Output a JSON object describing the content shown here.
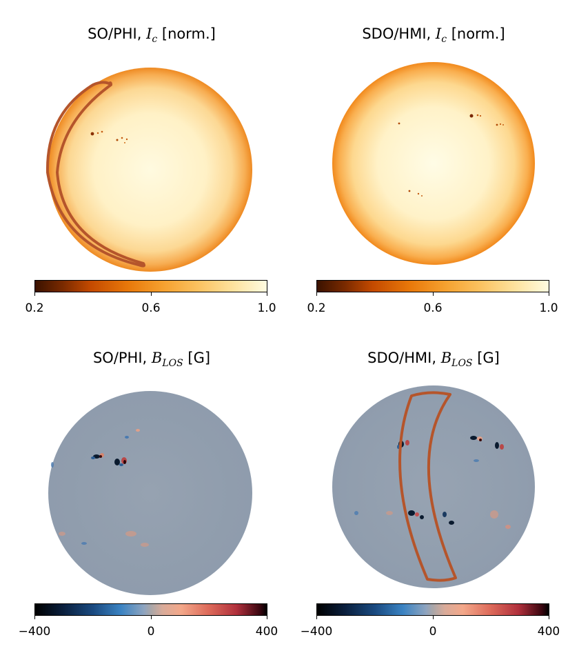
{
  "panels": {
    "phi_ic": {
      "title_prefix": "SO/PHI, ",
      "title_var": "I",
      "title_sub": "c",
      "title_unit": " [norm.]"
    },
    "hmi_ic": {
      "title_prefix": "SDO/HMI, ",
      "title_var": "I",
      "title_sub": "c",
      "title_unit": " [norm.]"
    },
    "phi_blos": {
      "title_prefix": "SO/PHI, ",
      "title_var": "B",
      "title_sub": "LOS",
      "title_unit": " [G]"
    },
    "hmi_blos": {
      "title_prefix": "SDO/HMI, ",
      "title_var": "B",
      "title_sub": "LOS",
      "title_unit": " [G]"
    }
  },
  "colorbars": {
    "ic": {
      "ticks": [
        "0.2",
        "0.6",
        "1.0"
      ]
    },
    "blos": {
      "ticks": [
        "−400",
        "0",
        "400"
      ]
    }
  },
  "colors": {
    "contour": "#b5552b",
    "ic_limb": "#f08a1c",
    "ic_center": "#fffbe2",
    "blos_bg": "#8d9bab"
  }
}
